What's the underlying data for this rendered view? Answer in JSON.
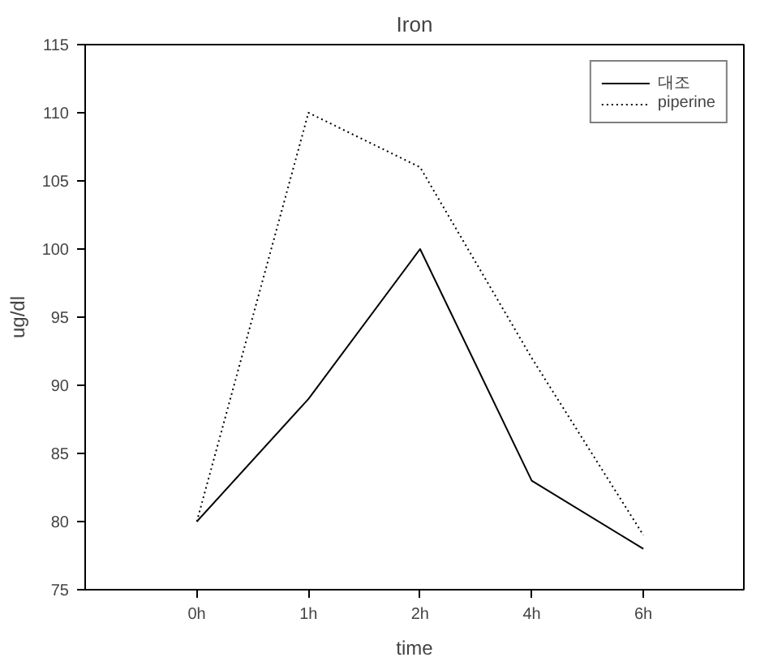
{
  "chart_data": {
    "type": "line",
    "title": "Iron",
    "xlabel": "time",
    "ylabel": "ug/dl",
    "categories": [
      "0h",
      "1h",
      "2h",
      "4h",
      "6h"
    ],
    "series": [
      {
        "name": "대조",
        "color": "#000000",
        "values": [
          80,
          89,
          100,
          83,
          78
        ],
        "line_style": "solid"
      },
      {
        "name": "piperine",
        "color": "#000000",
        "values": [
          80,
          110,
          106,
          92,
          79
        ],
        "line_style": "dotted"
      }
    ],
    "ylim": [
      75,
      115
    ],
    "yticks": [
      75,
      80,
      85,
      90,
      95,
      100,
      105,
      110,
      115
    ],
    "grid": false,
    "legend": "top right",
    "marker": "none"
  }
}
